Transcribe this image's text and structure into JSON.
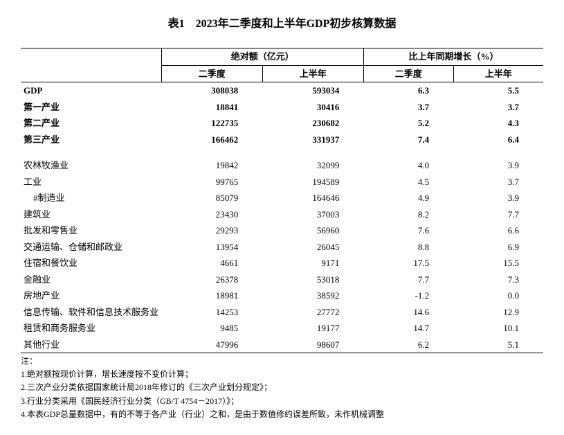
{
  "title": "表1　2023年二季度和上半年GDP初步核算数据",
  "headers": {
    "group_abs": "绝对额（亿元）",
    "group_growth": "比上年同期增长（%）",
    "q2": "二季度",
    "h1": "上半年"
  },
  "rows_bold": [
    {
      "label": "GDP",
      "abs_q2": "308038",
      "abs_h1": "593034",
      "gr_q2": "6.3",
      "gr_h1": "5.5"
    },
    {
      "label": "第一产业",
      "abs_q2": "18841",
      "abs_h1": "30416",
      "gr_q2": "3.7",
      "gr_h1": "3.7"
    },
    {
      "label": "第二产业",
      "abs_q2": "122735",
      "abs_h1": "230682",
      "gr_q2": "5.2",
      "gr_h1": "4.3"
    },
    {
      "label": "第三产业",
      "abs_q2": "166462",
      "abs_h1": "331937",
      "gr_q2": "7.4",
      "gr_h1": "6.4"
    }
  ],
  "rows_detail": [
    {
      "label": "农林牧渔业",
      "abs_q2": "19842",
      "abs_h1": "32099",
      "gr_q2": "4.0",
      "gr_h1": "3.9",
      "indent": false
    },
    {
      "label": "工业",
      "abs_q2": "99765",
      "abs_h1": "194589",
      "gr_q2": "4.5",
      "gr_h1": "3.7",
      "indent": false
    },
    {
      "label": "#制造业",
      "abs_q2": "85079",
      "abs_h1": "164646",
      "gr_q2": "4.9",
      "gr_h1": "3.9",
      "indent": true
    },
    {
      "label": "建筑业",
      "abs_q2": "23430",
      "abs_h1": "37003",
      "gr_q2": "8.2",
      "gr_h1": "7.7",
      "indent": false
    },
    {
      "label": "批发和零售业",
      "abs_q2": "29293",
      "abs_h1": "56960",
      "gr_q2": "7.6",
      "gr_h1": "6.6",
      "indent": false
    },
    {
      "label": "交通运输、仓储和邮政业",
      "abs_q2": "13954",
      "abs_h1": "26045",
      "gr_q2": "8.8",
      "gr_h1": "6.9",
      "indent": false
    },
    {
      "label": "住宿和餐饮业",
      "abs_q2": "4661",
      "abs_h1": "9171",
      "gr_q2": "17.5",
      "gr_h1": "15.5",
      "indent": false
    },
    {
      "label": "金融业",
      "abs_q2": "26378",
      "abs_h1": "53018",
      "gr_q2": "7.7",
      "gr_h1": "7.3",
      "indent": false
    },
    {
      "label": "房地产业",
      "abs_q2": "18981",
      "abs_h1": "38592",
      "gr_q2": "-1.2",
      "gr_h1": "0.0",
      "indent": false
    },
    {
      "label": "信息传输、软件和信息技术服务业",
      "abs_q2": "14253",
      "abs_h1": "27772",
      "gr_q2": "14.6",
      "gr_h1": "12.9",
      "indent": false
    },
    {
      "label": "租赁和商务服务业",
      "abs_q2": "9485",
      "abs_h1": "19177",
      "gr_q2": "14.7",
      "gr_h1": "10.1",
      "indent": false
    },
    {
      "label": "其他行业",
      "abs_q2": "47996",
      "abs_h1": "98607",
      "gr_q2": "6.2",
      "gr_h1": "5.1",
      "indent": false
    }
  ],
  "notes": {
    "intro": "注：",
    "items": [
      "1.绝对额按现价计算，增长速度按不变价计算；",
      "2.三次产业分类依据国家统计局2018年修订的《三次产业划分规定》；",
      "3.行业分类采用《国民经济行业分类（GB/T 4754－2017）》；",
      "4.本表GDP总量数据中，有的不等于各产业（行业）之和，是由于数值修约误差所致，未作机械调整"
    ]
  }
}
